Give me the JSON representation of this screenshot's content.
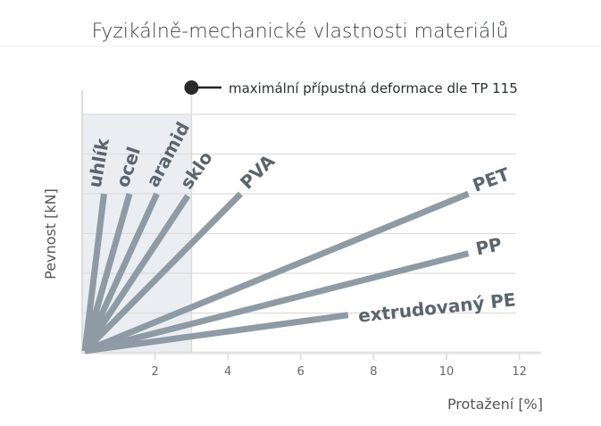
{
  "chart_data": {
    "type": "line",
    "title": "Fyzikálně-mechanické vlastnosti materiálů",
    "xlabel": "Protažení [%]",
    "ylabel": "Pevnost [kN]",
    "xlim": [
      0,
      12.5
    ],
    "ylim": [
      0,
      6.5
    ],
    "x_ticks": [
      "2",
      "4",
      "6",
      "8",
      "10",
      "12"
    ],
    "x_tick_values": [
      2,
      4,
      6,
      8,
      10,
      12
    ],
    "y_gridlines": [
      1,
      2,
      3,
      4,
      5,
      6
    ],
    "grid": true,
    "shaded_region": {
      "x": [
        0,
        3
      ],
      "y": [
        0,
        6
      ],
      "color": "#eaeef2"
    },
    "marker_line": {
      "x": 3,
      "label": "maximální přípustná deformace dle TP 115"
    },
    "line_color": "#8e9ba5",
    "label_color": "#5b656d",
    "series": [
      {
        "name": "uhlík",
        "x": [
          0,
          0.6
        ],
        "y": [
          0,
          4
        ]
      },
      {
        "name": "ocel",
        "x": [
          0,
          1.3
        ],
        "y": [
          0,
          4
        ]
      },
      {
        "name": "aramid",
        "x": [
          0,
          2.05
        ],
        "y": [
          0,
          4
        ]
      },
      {
        "name": "sklo",
        "x": [
          0,
          2.9
        ],
        "y": [
          0,
          3.95
        ]
      },
      {
        "name": "PVA",
        "x": [
          0,
          4.35
        ],
        "y": [
          0,
          4
        ]
      },
      {
        "name": "PET",
        "x": [
          0,
          10.6
        ],
        "y": [
          0,
          4
        ]
      },
      {
        "name": "PP",
        "x": [
          0,
          10.6
        ],
        "y": [
          0,
          2.5
        ]
      },
      {
        "name": "extrudovaný PE",
        "x": [
          0,
          7.3
        ],
        "y": [
          0,
          0.95
        ]
      }
    ]
  }
}
